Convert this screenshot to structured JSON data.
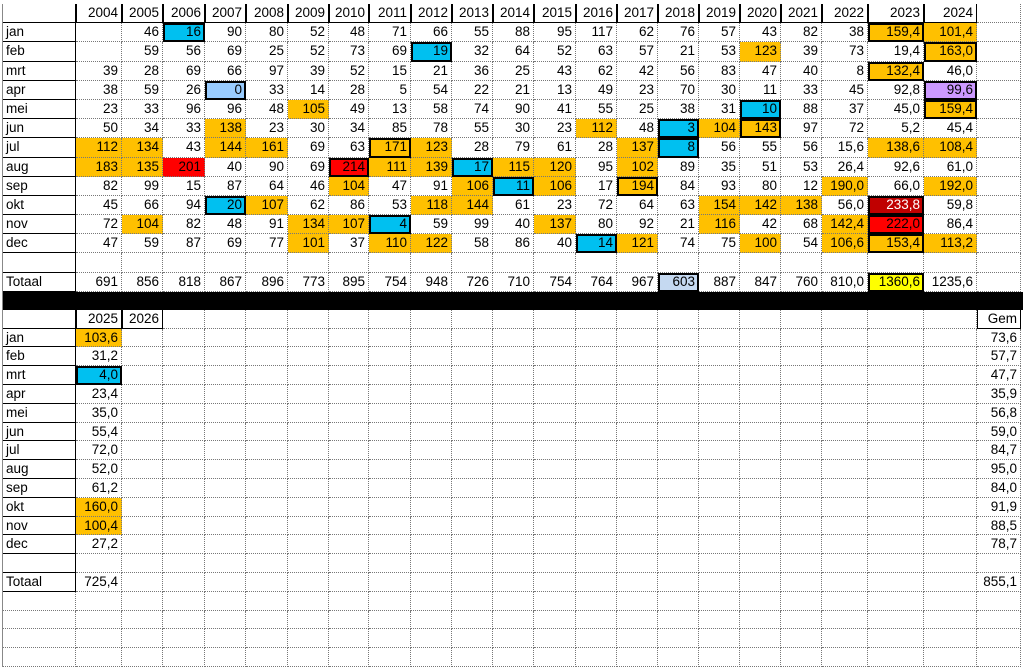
{
  "styles_legend": {
    "o": "#ffc000",
    "b": "#00c0f0",
    "lb": "#99ccff",
    "r": "#ff0000",
    "dr": "#c00000",
    "p": "#cc99ff",
    "y": "#ffff00",
    "g": "#c5d9f1"
  },
  "top": {
    "years": [
      "2004",
      "2005",
      "2006",
      "2007",
      "2008",
      "2009",
      "2010",
      "2011",
      "2012",
      "2013",
      "2014",
      "2015",
      "2016",
      "2017",
      "2018",
      "2019",
      "2020",
      "2021",
      "2022",
      "2023",
      "2024"
    ],
    "rows": [
      {
        "label": "jan",
        "values": [
          "",
          "46",
          "16",
          "90",
          "80",
          "52",
          "48",
          "71",
          "66",
          "55",
          "88",
          "95",
          "117",
          "62",
          "76",
          "57",
          "43",
          "82",
          "38",
          "159,4",
          "101,4"
        ],
        "styles": {
          "2": "b bx",
          "19": "o bx",
          "20": "o"
        }
      },
      {
        "label": "feb",
        "values": [
          "",
          "59",
          "56",
          "69",
          "25",
          "52",
          "73",
          "69",
          "19",
          "32",
          "64",
          "52",
          "63",
          "57",
          "21",
          "53",
          "123",
          "39",
          "73",
          "19,4",
          "163,0"
        ],
        "styles": {
          "8": "b bx",
          "16": "o",
          "20": "o bx"
        }
      },
      {
        "label": "mrt",
        "values": [
          "39",
          "28",
          "69",
          "66",
          "97",
          "39",
          "52",
          "15",
          "21",
          "36",
          "25",
          "43",
          "62",
          "42",
          "56",
          "83",
          "47",
          "40",
          "8",
          "132,4",
          "46,0"
        ],
        "styles": {
          "19": "o bx"
        }
      },
      {
        "label": "apr",
        "values": [
          "38",
          "59",
          "26",
          "0",
          "33",
          "14",
          "28",
          "5",
          "54",
          "22",
          "21",
          "13",
          "49",
          "23",
          "70",
          "30",
          "11",
          "33",
          "45",
          "92,8",
          "99,6"
        ],
        "styles": {
          "3": "lb bx",
          "20": "p bx"
        }
      },
      {
        "label": "mei",
        "values": [
          "23",
          "33",
          "96",
          "96",
          "48",
          "105",
          "49",
          "13",
          "58",
          "74",
          "90",
          "41",
          "55",
          "25",
          "38",
          "31",
          "10",
          "88",
          "37",
          "45,0",
          "159,4"
        ],
        "styles": {
          "5": "o",
          "16": "b bx",
          "20": "o bx"
        }
      },
      {
        "label": "jun",
        "values": [
          "50",
          "34",
          "33",
          "138",
          "23",
          "30",
          "34",
          "85",
          "78",
          "55",
          "30",
          "23",
          "112",
          "48",
          "3",
          "104",
          "143",
          "97",
          "72",
          "5,2",
          "45,4"
        ],
        "styles": {
          "3": "o",
          "12": "o",
          "14": "b bx",
          "15": "o",
          "16": "o bx"
        }
      },
      {
        "label": "jul",
        "values": [
          "112",
          "134",
          "43",
          "144",
          "161",
          "69",
          "63",
          "171",
          "123",
          "28",
          "79",
          "61",
          "28",
          "137",
          "8",
          "56",
          "55",
          "56",
          "15,6",
          "138,6",
          "108,4"
        ],
        "styles": {
          "0": "o",
          "1": "o",
          "3": "o",
          "4": "o",
          "7": "o bx",
          "8": "o",
          "13": "o",
          "14": "b bx",
          "19": "o",
          "20": "o"
        }
      },
      {
        "label": "aug",
        "values": [
          "183",
          "135",
          "201",
          "40",
          "90",
          "69",
          "214",
          "111",
          "139",
          "17",
          "115",
          "120",
          "95",
          "102",
          "89",
          "35",
          "51",
          "53",
          "26,4",
          "92,6",
          "61,0"
        ],
        "styles": {
          "0": "o",
          "1": "o",
          "2": "r",
          "6": "r bx",
          "7": "o",
          "8": "o",
          "9": "b bx",
          "10": "o",
          "11": "o",
          "13": "o"
        }
      },
      {
        "label": "sep",
        "values": [
          "82",
          "99",
          "15",
          "87",
          "64",
          "46",
          "104",
          "47",
          "91",
          "106",
          "11",
          "106",
          "17",
          "194",
          "84",
          "93",
          "80",
          "12",
          "190,0",
          "66,0",
          "192,0"
        ],
        "styles": {
          "6": "o",
          "9": "o",
          "10": "b bx",
          "11": "o",
          "13": "o bx",
          "18": "o",
          "20": "o"
        }
      },
      {
        "label": "okt",
        "values": [
          "45",
          "66",
          "94",
          "20",
          "107",
          "62",
          "86",
          "53",
          "118",
          "144",
          "61",
          "23",
          "72",
          "64",
          "63",
          "154",
          "142",
          "138",
          "56,0",
          "233,8",
          "59,8"
        ],
        "styles": {
          "3": "b bx",
          "4": "o",
          "8": "o",
          "9": "o",
          "15": "o",
          "16": "o",
          "17": "o",
          "19": "dr bx"
        }
      },
      {
        "label": "nov",
        "values": [
          "72",
          "104",
          "82",
          "48",
          "91",
          "134",
          "107",
          "4",
          "59",
          "99",
          "40",
          "137",
          "80",
          "92",
          "21",
          "116",
          "42",
          "68",
          "142,4",
          "222,0",
          "86,4"
        ],
        "styles": {
          "1": "o",
          "5": "o",
          "6": "o",
          "7": "b bx",
          "11": "o",
          "15": "o",
          "18": "o",
          "19": "r bx"
        }
      },
      {
        "label": "dec",
        "values": [
          "47",
          "59",
          "87",
          "69",
          "77",
          "101",
          "37",
          "110",
          "122",
          "58",
          "86",
          "40",
          "14",
          "121",
          "74",
          "75",
          "100",
          "54",
          "106,6",
          "153,4",
          "113,2"
        ],
        "styles": {
          "5": "o",
          "7": "o",
          "8": "o",
          "12": "b bx",
          "13": "o",
          "16": "o",
          "18": "o",
          "19": "o bx",
          "20": "o"
        }
      },
      {
        "label": "",
        "values": [],
        "styles": {}
      },
      {
        "label": "Totaal",
        "values": [
          "691",
          "856",
          "818",
          "867",
          "896",
          "773",
          "895",
          "754",
          "948",
          "726",
          "710",
          "754",
          "764",
          "967",
          "603",
          "887",
          "847",
          "760",
          "810,0",
          "1360,6",
          "1235,6"
        ],
        "styles": {
          "14": "g bx",
          "19": "y bx"
        }
      }
    ]
  },
  "bottom": {
    "years": [
      "2025",
      "2026"
    ],
    "avg_header": "Gem",
    "rows": [
      {
        "label": "jan",
        "values": [
          "103,6"
        ],
        "avg": "73,6",
        "styles": {
          "0": "o"
        }
      },
      {
        "label": "feb",
        "values": [
          "31,2"
        ],
        "avg": "57,7",
        "styles": {}
      },
      {
        "label": "mrt",
        "values": [
          "4,0"
        ],
        "avg": "47,7",
        "styles": {
          "0": "b bx"
        }
      },
      {
        "label": "apr",
        "values": [
          "23,4"
        ],
        "avg": "35,9",
        "styles": {}
      },
      {
        "label": "mei",
        "values": [
          "35,0"
        ],
        "avg": "56,8",
        "styles": {}
      },
      {
        "label": "jun",
        "values": [
          "55,4"
        ],
        "avg": "59,0",
        "styles": {}
      },
      {
        "label": "jul",
        "values": [
          "72,0"
        ],
        "avg": "84,7",
        "styles": {}
      },
      {
        "label": "aug",
        "values": [
          "52,0"
        ],
        "avg": "95,0",
        "styles": {}
      },
      {
        "label": "sep",
        "values": [
          "61,2"
        ],
        "avg": "84,0",
        "styles": {}
      },
      {
        "label": "okt",
        "values": [
          "160,0"
        ],
        "avg": "91,9",
        "styles": {
          "0": "o"
        }
      },
      {
        "label": "nov",
        "values": [
          "100,4"
        ],
        "avg": "88,5",
        "styles": {
          "0": "o"
        }
      },
      {
        "label": "dec",
        "values": [
          "27,2"
        ],
        "avg": "78,7",
        "styles": {}
      },
      {
        "label": "",
        "values": [],
        "avg": "",
        "styles": {}
      },
      {
        "label": "Totaal",
        "values": [
          "725,4"
        ],
        "avg": "855,1",
        "styles": {}
      }
    ]
  }
}
